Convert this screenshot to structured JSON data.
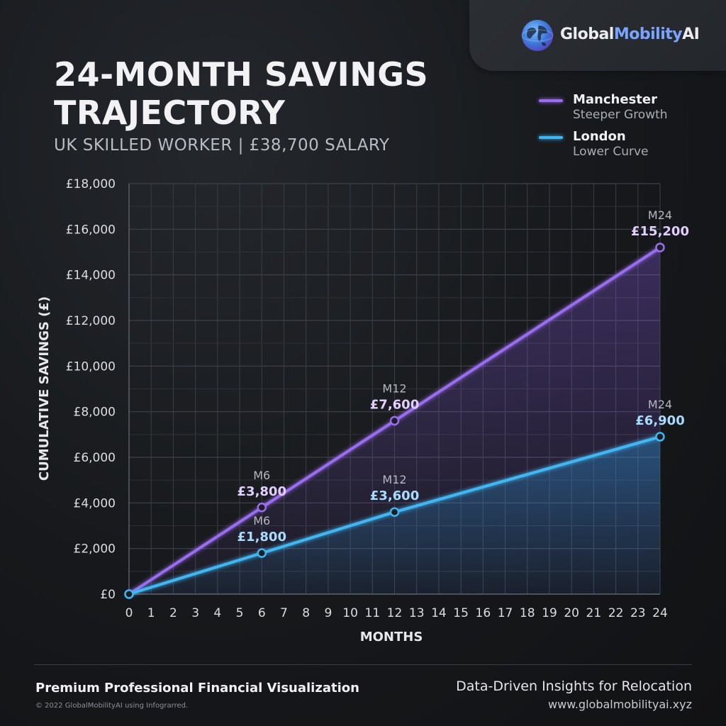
{
  "brand": {
    "part1": "Global",
    "part2": "Mobility",
    "part3": "AI",
    "logo_icon": "globe-icon"
  },
  "header": {
    "title": "24-MONTH SAVINGS TRAJECTORY",
    "subtitle": "UK SKILLED WORKER | £38,700 SALARY"
  },
  "legend": {
    "items": [
      {
        "name": "Manchester",
        "desc": "Steeper Growth",
        "color": "#9a6cf0"
      },
      {
        "name": "London",
        "desc": "Lower Curve",
        "color": "#3fb6f2"
      }
    ]
  },
  "chart_data": {
    "type": "line",
    "title": "24-MONTH SAVINGS TRAJECTORY",
    "subtitle": "UK SKILLED WORKER | £38,700 SALARY",
    "xlabel": "MONTHS",
    "ylabel": "CUMULATIVE SAVINGS (£)",
    "xlim": [
      0,
      24
    ],
    "ylim": [
      0,
      18000
    ],
    "x_ticks": [
      0,
      1,
      2,
      3,
      4,
      5,
      6,
      7,
      8,
      9,
      10,
      11,
      12,
      13,
      14,
      15,
      16,
      17,
      18,
      19,
      20,
      21,
      22,
      23,
      24
    ],
    "y_ticks": [
      "£0",
      "£2,000",
      "£4,000",
      "£6,000",
      "£8,000",
      "£10,000",
      "£12,000",
      "£14,000",
      "£16,000",
      "£18,000"
    ],
    "y_tick_values": [
      0,
      2000,
      4000,
      6000,
      8000,
      10000,
      12000,
      14000,
      16000,
      18000
    ],
    "grid": true,
    "legend_position": "top-right",
    "series": [
      {
        "name": "Manchester",
        "color": "#9a6cf0",
        "label_color": "#e2cfff",
        "x": [
          0,
          6,
          12,
          24
        ],
        "y": [
          0,
          3800,
          7600,
          15200
        ],
        "point_labels": [
          {
            "x": 6,
            "y": 3800,
            "month": "M6",
            "value": "£3,800"
          },
          {
            "x": 12,
            "y": 7600,
            "month": "M12",
            "value": "£7,600"
          },
          {
            "x": 24,
            "y": 15200,
            "month": "M24",
            "value": "£15,200"
          }
        ]
      },
      {
        "name": "London",
        "color": "#3fb6f2",
        "label_color": "#a8dcff",
        "x": [
          0,
          6,
          12,
          24
        ],
        "y": [
          0,
          1800,
          3600,
          6900
        ],
        "point_labels": [
          {
            "x": 6,
            "y": 1800,
            "month": "M6",
            "value": "£1,800"
          },
          {
            "x": 12,
            "y": 3600,
            "month": "M12",
            "value": "£3,600"
          },
          {
            "x": 24,
            "y": 6900,
            "month": "M24",
            "value": "£6,900"
          }
        ]
      }
    ]
  },
  "footer": {
    "left": "Premium Professional Financial Visualization",
    "copyright": "© 2022 GlobalMobilityAI using Infograrred.",
    "tagline": "Data-Driven Insights for Relocation",
    "url": "www.globalmobilityai.xyz"
  }
}
